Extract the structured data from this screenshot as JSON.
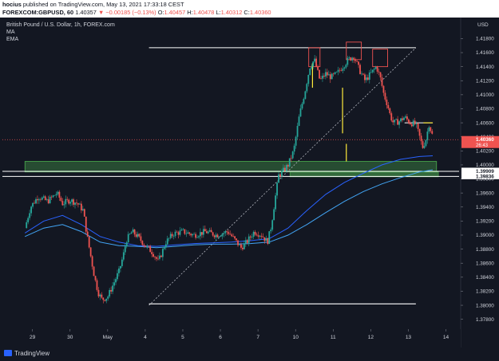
{
  "header": {
    "publisher_user": "hocius",
    "publisher_rest": " published on TradingView.com, May 13, 2021 17:33:18 CEST",
    "symbol": "FOREXCOM:GBPUSD, 60",
    "last": "1.40357",
    "change": "▼ −0.00185 (−0.13%)",
    "o_label": "O:",
    "o_value": "1.40457",
    "h_label": "H:",
    "h_value": "1.40478",
    "l_label": "L:",
    "l_value": "1.40312",
    "c_label": "C:",
    "c_value": "1.40360"
  },
  "legend": {
    "title": "British Pound / U.S. Dollar, 1h, FOREX.com",
    "ma": "MA",
    "ema": "EMA"
  },
  "footer": {
    "brand": "TradingView"
  },
  "colors": {
    "background": "#131722",
    "up": "#26a69a",
    "down": "#ef5350",
    "ma": "#2962ff",
    "ema": "#42a5f5",
    "zone": "#4caf50",
    "trend": "#ffffff",
    "marker": "#ffeb3b"
  },
  "chart_data": {
    "type": "candlestick",
    "title": "British Pound / U.S. Dollar, 1h, FOREX.com",
    "y_axis_label": "USD",
    "ylim": [
      1.3766,
      1.421
    ],
    "y_ticks": [
      "1.41800",
      "1.41600",
      "1.41400",
      "1.41200",
      "1.41000",
      "1.40800",
      "1.40600",
      "1.40400",
      "1.40200",
      "1.40000",
      "1.39800",
      "1.39600",
      "1.39400",
      "1.39200",
      "1.39000",
      "1.38800",
      "1.38600",
      "1.38400",
      "1.38200",
      "1.38000",
      "1.37800"
    ],
    "x_ticks": [
      {
        "label": "29",
        "day": 0.2
      },
      {
        "label": "30",
        "day": 1.2
      },
      {
        "label": "May",
        "day": 2.2
      },
      {
        "label": "4",
        "day": 3.2
      },
      {
        "label": "5",
        "day": 4.2
      },
      {
        "label": "6",
        "day": 5.2
      },
      {
        "label": "7",
        "day": 6.2
      },
      {
        "label": "10",
        "day": 7.2
      },
      {
        "label": "11",
        "day": 8.2
      },
      {
        "label": "12",
        "day": 9.2
      },
      {
        "label": "13",
        "day": 10.2
      },
      {
        "label": "14",
        "day": 11.2
      }
    ],
    "price_path": [
      [
        0.0,
        1.391
      ],
      [
        0.15,
        1.394
      ],
      [
        0.35,
        1.3955
      ],
      [
        0.6,
        1.3948
      ],
      [
        0.85,
        1.396
      ],
      [
        1.0,
        1.3945
      ],
      [
        1.2,
        1.395
      ],
      [
        1.4,
        1.3945
      ],
      [
        1.55,
        1.3935
      ],
      [
        1.65,
        1.39
      ],
      [
        1.75,
        1.387
      ],
      [
        1.85,
        1.384
      ],
      [
        1.95,
        1.3818
      ],
      [
        2.05,
        1.3808
      ],
      [
        2.2,
        1.3812
      ],
      [
        2.35,
        1.383
      ],
      [
        2.5,
        1.3848
      ],
      [
        2.62,
        1.3872
      ],
      [
        2.7,
        1.3893
      ],
      [
        2.85,
        1.3905
      ],
      [
        3.0,
        1.3898
      ],
      [
        3.2,
        1.3885
      ],
      [
        3.4,
        1.3875
      ],
      [
        3.55,
        1.3862
      ],
      [
        3.75,
        1.389
      ],
      [
        3.95,
        1.3902
      ],
      [
        4.2,
        1.3905
      ],
      [
        4.5,
        1.39
      ],
      [
        4.8,
        1.3905
      ],
      [
        5.1,
        1.39
      ],
      [
        5.4,
        1.3905
      ],
      [
        5.6,
        1.3892
      ],
      [
        5.75,
        1.3882
      ],
      [
        5.9,
        1.389
      ],
      [
        6.1,
        1.3905
      ],
      [
        6.3,
        1.39
      ],
      [
        6.45,
        1.389
      ],
      [
        6.55,
        1.3912
      ],
      [
        6.65,
        1.395
      ],
      [
        6.75,
        1.3985
      ],
      [
        6.85,
        1.399
      ],
      [
        7.0,
        1.4
      ],
      [
        7.15,
        1.402
      ],
      [
        7.3,
        1.407
      ],
      [
        7.45,
        1.4105
      ],
      [
        7.58,
        1.414
      ],
      [
        7.7,
        1.415
      ],
      [
        7.85,
        1.412
      ],
      [
        8.0,
        1.413
      ],
      [
        8.15,
        1.4125
      ],
      [
        8.3,
        1.413
      ],
      [
        8.45,
        1.414
      ],
      [
        8.6,
        1.415
      ],
      [
        8.75,
        1.4155
      ],
      [
        8.9,
        1.4135
      ],
      [
        9.05,
        1.412
      ],
      [
        9.2,
        1.413
      ],
      [
        9.35,
        1.414
      ],
      [
        9.45,
        1.4125
      ],
      [
        9.55,
        1.41
      ],
      [
        9.65,
        1.4085
      ],
      [
        9.72,
        1.407
      ],
      [
        9.8,
        1.406
      ],
      [
        9.95,
        1.4062
      ],
      [
        10.1,
        1.4068
      ],
      [
        10.25,
        1.406
      ],
      [
        10.4,
        1.4058
      ],
      [
        10.5,
        1.404
      ],
      [
        10.58,
        1.4025
      ],
      [
        10.66,
        1.4035
      ],
      [
        10.75,
        1.4058
      ],
      [
        10.85,
        1.404
      ]
    ],
    "ma": [
      [
        0.0,
        1.3903
      ],
      [
        0.5,
        1.392
      ],
      [
        1.0,
        1.3928
      ],
      [
        1.5,
        1.3915
      ],
      [
        2.0,
        1.3898
      ],
      [
        2.5,
        1.389
      ],
      [
        3.0,
        1.3885
      ],
      [
        3.5,
        1.3884
      ],
      [
        4.0,
        1.3886
      ],
      [
        4.5,
        1.3888
      ],
      [
        5.0,
        1.3889
      ],
      [
        5.5,
        1.389
      ],
      [
        6.0,
        1.3892
      ],
      [
        6.5,
        1.3895
      ],
      [
        7.0,
        1.391
      ],
      [
        7.5,
        1.3935
      ],
      [
        8.0,
        1.3958
      ],
      [
        8.5,
        1.3975
      ],
      [
        9.0,
        1.3988
      ],
      [
        9.5,
        1.4
      ],
      [
        10.0,
        1.4008
      ],
      [
        10.5,
        1.4012
      ],
      [
        10.85,
        1.4013
      ]
    ],
    "ema": [
      [
        0.0,
        1.3898
      ],
      [
        0.5,
        1.391
      ],
      [
        1.0,
        1.3915
      ],
      [
        1.5,
        1.3905
      ],
      [
        2.0,
        1.389
      ],
      [
        2.5,
        1.3885
      ],
      [
        3.0,
        1.3884
      ],
      [
        3.5,
        1.3882
      ],
      [
        4.0,
        1.3884
      ],
      [
        4.5,
        1.3886
      ],
      [
        5.0,
        1.3887
      ],
      [
        5.5,
        1.3887
      ],
      [
        6.0,
        1.3888
      ],
      [
        6.5,
        1.389
      ],
      [
        7.0,
        1.39
      ],
      [
        7.5,
        1.3915
      ],
      [
        8.0,
        1.3932
      ],
      [
        8.5,
        1.3948
      ],
      [
        9.0,
        1.3962
      ],
      [
        9.5,
        1.3973
      ],
      [
        10.0,
        1.3982
      ],
      [
        10.5,
        1.399
      ],
      [
        10.85,
        1.3993
      ]
    ],
    "resistance_line": {
      "y": 1.4167,
      "from_day": 3.3,
      "to_day": 10.4
    },
    "support_line": {
      "y": 1.3802,
      "from_day": 3.3,
      "to_day": 10.4
    },
    "trendline": {
      "from": [
        3.3,
        1.38
      ],
      "to": [
        10.4,
        1.4167
      ]
    },
    "support_zone": {
      "y_top": 1.4005,
      "y_bottom": 1.399,
      "from_day": 0.0,
      "to_day": 10.95
    },
    "band_2": {
      "y_top": 1.399,
      "y_bottom": 1.3983,
      "from_day": 7.05,
      "to_day": 11.0
    },
    "h_line_1": {
      "y": 1.39909
    },
    "h_line_2": {
      "y": 1.39836
    },
    "short_line": {
      "y": 1.406,
      "from_day": 10.1,
      "to_day": 10.85
    },
    "tick_marker": {
      "y": 1.406,
      "from_day": 10.6,
      "to_day": 10.85
    },
    "pattern_boxes": [
      {
        "from_day": 7.55,
        "to_day": 7.85,
        "y_top": 1.4167,
        "y_bottom": 1.414
      },
      {
        "from_day": 8.55,
        "to_day": 8.95,
        "y_top": 1.4175,
        "y_bottom": 1.415
      },
      {
        "from_day": 9.25,
        "to_day": 9.65,
        "y_top": 1.4165,
        "y_bottom": 1.414
      }
    ],
    "yellow_marks": [
      {
        "day": 7.65,
        "y_top": 1.4145,
        "y_bottom": 1.411
      },
      {
        "day": 8.45,
        "y_top": 1.411,
        "y_bottom": 1.4045
      },
      {
        "day": 8.55,
        "y_top": 1.403,
        "y_bottom": 1.4005
      }
    ],
    "price_labels": [
      {
        "text": "1.40360",
        "value": 1.4036,
        "bg": "#ef5350",
        "sub": "26:43"
      },
      {
        "text": "1.39909",
        "value": 1.39909,
        "bg": "#ffffff"
      },
      {
        "text": "1.39836",
        "value": 1.39836,
        "bg": "#ffffff"
      }
    ],
    "current_price": 1.4036
  }
}
